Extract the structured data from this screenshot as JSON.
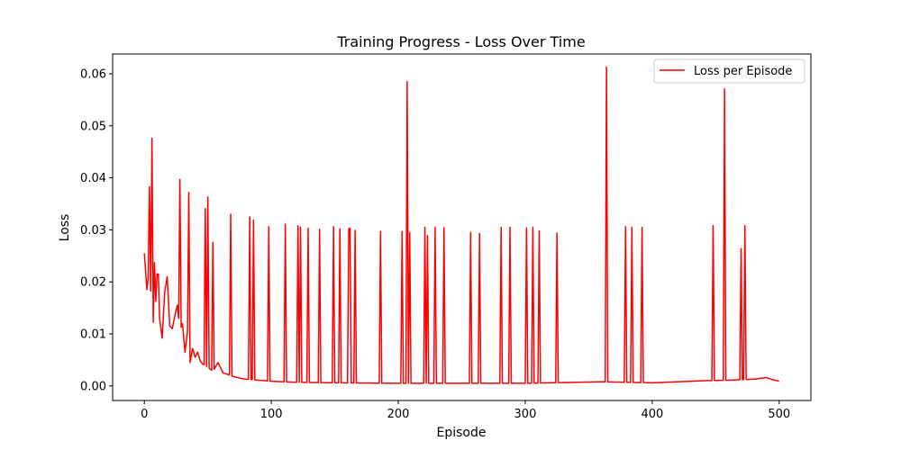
{
  "chart_data": {
    "type": "line",
    "title": "Training Progress - Loss Over Time",
    "xlabel": "Episode",
    "ylabel": "Loss",
    "xlim": [
      -25,
      525
    ],
    "ylim": [
      -0.0028,
      0.0638
    ],
    "xticks": [
      0,
      100,
      200,
      300,
      400,
      500
    ],
    "yticks": [
      0.0,
      0.01,
      0.02,
      0.03,
      0.04,
      0.05,
      0.06
    ],
    "ytick_labels": [
      "0.00",
      "0.01",
      "0.02",
      "0.03",
      "0.04",
      "0.05",
      "0.06"
    ],
    "grid": false,
    "legend": "top-right",
    "colors": {
      "series": "#ff0000"
    },
    "series": [
      {
        "name": "Loss per Episode",
        "baseline": [
          [
            0,
            0.0255
          ],
          [
            2,
            0.0185
          ],
          [
            4,
            0.023
          ],
          [
            6,
            0.0135
          ],
          [
            8,
            0.011
          ],
          [
            10,
            0.0215
          ],
          [
            12,
            0.013
          ],
          [
            14,
            0.0092
          ],
          [
            16,
            0.018
          ],
          [
            18,
            0.021
          ],
          [
            20,
            0.0115
          ],
          [
            22,
            0.011
          ],
          [
            24,
            0.0135
          ],
          [
            26,
            0.0155
          ],
          [
            28,
            0.0105
          ],
          [
            30,
            0.012
          ],
          [
            32,
            0.0065
          ],
          [
            34,
            0.0105
          ],
          [
            36,
            0.0045
          ],
          [
            38,
            0.0072
          ],
          [
            40,
            0.0055
          ],
          [
            42,
            0.0065
          ],
          [
            44,
            0.0048
          ],
          [
            46,
            0.0042
          ],
          [
            50,
            0.0036
          ],
          [
            54,
            0.0028
          ],
          [
            58,
            0.0045
          ],
          [
            62,
            0.0025
          ],
          [
            66,
            0.0022
          ],
          [
            70,
            0.0018
          ],
          [
            75,
            0.0015
          ],
          [
            80,
            0.0013
          ],
          [
            90,
            0.0011
          ],
          [
            100,
            0.0009
          ],
          [
            120,
            0.0007
          ],
          [
            150,
            0.0006
          ],
          [
            200,
            0.0005
          ],
          [
            250,
            0.0005
          ],
          [
            300,
            0.0005
          ],
          [
            340,
            0.0007
          ],
          [
            360,
            0.0008
          ],
          [
            400,
            0.0006
          ],
          [
            420,
            0.0008
          ],
          [
            440,
            0.001
          ],
          [
            460,
            0.0011
          ],
          [
            480,
            0.0013
          ],
          [
            490,
            0.0016
          ],
          [
            495,
            0.0012
          ],
          [
            500,
            0.0009
          ]
        ],
        "spikes": [
          [
            4,
            0.0383
          ],
          [
            6,
            0.0476
          ],
          [
            8,
            0.0237
          ],
          [
            11,
            0.0215
          ],
          [
            28,
            0.0397
          ],
          [
            35,
            0.0372
          ],
          [
            48,
            0.0341
          ],
          [
            50,
            0.0363
          ],
          [
            54,
            0.0276
          ],
          [
            68,
            0.033
          ],
          [
            83,
            0.0325
          ],
          [
            86,
            0.0319
          ],
          [
            98,
            0.0306
          ],
          [
            111,
            0.0311
          ],
          [
            121,
            0.0308
          ],
          [
            123,
            0.0305
          ],
          [
            129,
            0.0303
          ],
          [
            138,
            0.0301
          ],
          [
            149,
            0.0306
          ],
          [
            154,
            0.0302
          ],
          [
            161,
            0.0302
          ],
          [
            162,
            0.0303
          ],
          [
            166,
            0.0299
          ],
          [
            186,
            0.0297
          ],
          [
            203,
            0.0297
          ],
          [
            207,
            0.0585
          ],
          [
            209,
            0.0295
          ],
          [
            221,
            0.0305
          ],
          [
            223,
            0.0289
          ],
          [
            229,
            0.0305
          ],
          [
            236,
            0.0304
          ],
          [
            257,
            0.0295
          ],
          [
            264,
            0.0293
          ],
          [
            281,
            0.0305
          ],
          [
            288,
            0.0305
          ],
          [
            301,
            0.0304
          ],
          [
            306,
            0.0305
          ],
          [
            311,
            0.0298
          ],
          [
            325,
            0.0294
          ],
          [
            364,
            0.0613
          ],
          [
            379,
            0.0306
          ],
          [
            384,
            0.0305
          ],
          [
            392,
            0.0305
          ],
          [
            448,
            0.0308
          ],
          [
            457,
            0.0571
          ],
          [
            470,
            0.0264
          ],
          [
            473,
            0.0308
          ]
        ]
      }
    ]
  }
}
